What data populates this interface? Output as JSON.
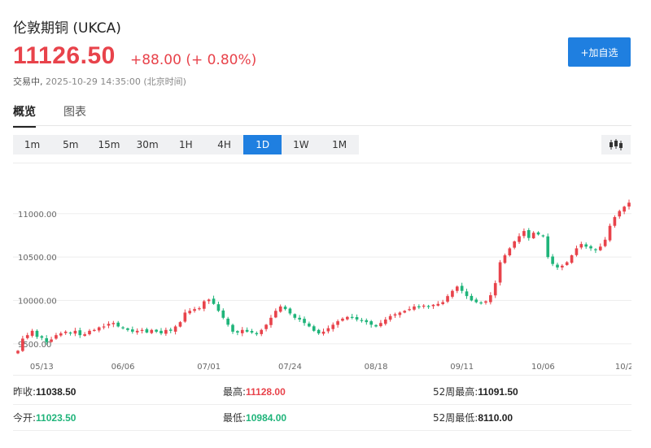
{
  "header": {
    "title": "伦敦期铜 (UKCA)",
    "price": "11126.50",
    "change": "+88.00 (+ 0.80%)",
    "status": "交易中,",
    "timestamp": "2025-10-29 14:35:00",
    "timezone": "(北京时间)",
    "add_label": "+加自选"
  },
  "tabs": [
    {
      "label": "概览",
      "active": true
    },
    {
      "label": "图表",
      "active": false
    }
  ],
  "intervals": [
    {
      "label": "1m"
    },
    {
      "label": "5m"
    },
    {
      "label": "15m"
    },
    {
      "label": "30m"
    },
    {
      "label": "1H"
    },
    {
      "label": "4H"
    },
    {
      "label": "1D",
      "active": true
    },
    {
      "label": "1W"
    },
    {
      "label": "1M"
    }
  ],
  "chart_type_icon": "candlestick-icon",
  "colors": {
    "up": "#e8434b",
    "down": "#1fb47a",
    "accent": "#1f7fe0"
  },
  "chart_data": {
    "type": "candlestick",
    "y_ticks": [
      "11000.00",
      "10500.00",
      "10000.00",
      "9500.00"
    ],
    "y_tick_values": [
      11000,
      10500,
      10000,
      9500
    ],
    "x_ticks": [
      {
        "label": "05/13",
        "index": 5
      },
      {
        "label": "06/06",
        "index": 22
      },
      {
        "label": "07/01",
        "index": 40
      },
      {
        "label": "07/24",
        "index": 57
      },
      {
        "label": "08/18",
        "index": 75
      },
      {
        "label": "09/11",
        "index": 93
      },
      {
        "label": "10/06",
        "index": 110
      },
      {
        "label": "10/2",
        "index": 127
      }
    ],
    "ylim": [
      9330,
      11560
    ],
    "grid": true,
    "closes": [
      9420,
      9560,
      9600,
      9650,
      9580,
      9570,
      9520,
      9550,
      9600,
      9620,
      9640,
      9620,
      9650,
      9600,
      9610,
      9650,
      9660,
      9690,
      9700,
      9730,
      9740,
      9700,
      9680,
      9660,
      9640,
      9650,
      9660,
      9630,
      9660,
      9640,
      9620,
      9660,
      9650,
      9700,
      9750,
      9860,
      9880,
      9900,
      9910,
      9990,
      10010,
      9960,
      9880,
      9800,
      9720,
      9640,
      9630,
      9660,
      9640,
      9630,
      9610,
      9660,
      9720,
      9800,
      9880,
      9930,
      9900,
      9850,
      9800,
      9780,
      9740,
      9700,
      9650,
      9620,
      9640,
      9680,
      9720,
      9760,
      9790,
      9810,
      9800,
      9780,
      9770,
      9750,
      9720,
      9700,
      9740,
      9780,
      9820,
      9840,
      9860,
      9880,
      9900,
      9930,
      9920,
      9940,
      9930,
      9950,
      9960,
      9980,
      10050,
      10110,
      10160,
      10110,
      10050,
      10000,
      9980,
      9970,
      9990,
      10060,
      10200,
      10440,
      10520,
      10600,
      10680,
      10740,
      10800,
      10720,
      10780,
      10760,
      10740,
      10500,
      10420,
      10380,
      10400,
      10440,
      10520,
      10600,
      10650,
      10620,
      10600,
      10580,
      10620,
      10700,
      10860,
      10960,
      11030,
      11080,
      11126.5
    ]
  },
  "stats": {
    "rows": [
      [
        {
          "label": "昨收:",
          "value": "11038.50",
          "color": "dark"
        },
        {
          "label": "最高:",
          "value": "11128.00",
          "color": "red"
        },
        {
          "label": "52周最高:",
          "value": "11091.50",
          "color": "dark"
        }
      ],
      [
        {
          "label": "今开:",
          "value": "11023.50",
          "color": "green"
        },
        {
          "label": "最低:",
          "value": "10984.00",
          "color": "green"
        },
        {
          "label": "52周最低:",
          "value": "8110.00",
          "color": "dark"
        }
      ]
    ]
  }
}
